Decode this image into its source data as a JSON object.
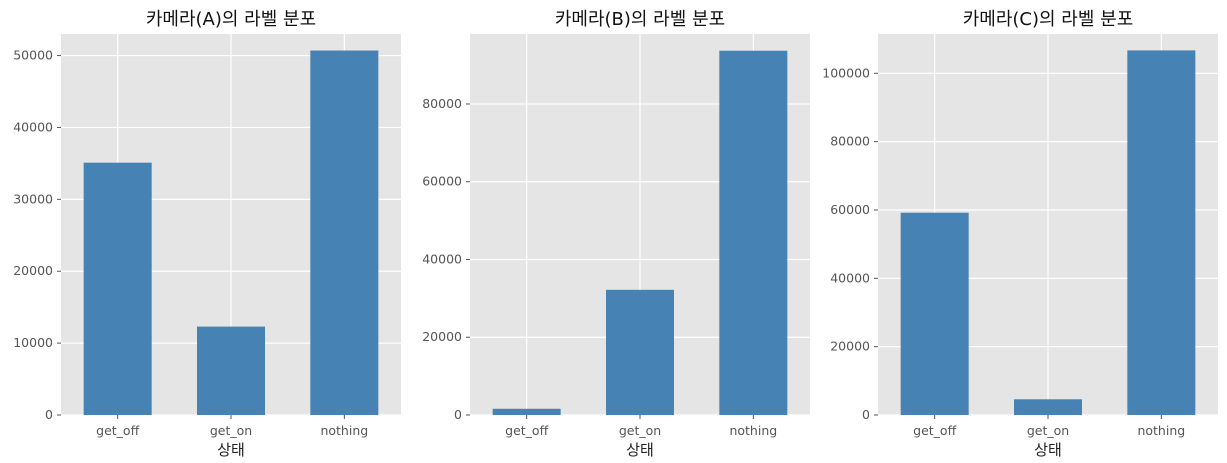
{
  "chart_data": [
    {
      "type": "bar",
      "title": "카메라(A)의 라벨 분포",
      "xlabel": "상태",
      "ylabel": "",
      "categories": [
        "get_off",
        "get_on",
        "nothing"
      ],
      "values": [
        35100,
        12300,
        50700
      ],
      "ylim": [
        0,
        53000
      ],
      "yticks": [
        0,
        10000,
        20000,
        30000,
        40000,
        50000
      ],
      "grid": true,
      "bar_color": "#4682b4",
      "background_color": "#e5e5e5"
    },
    {
      "type": "bar",
      "title": "카메라(B)의 라벨 분포",
      "xlabel": "상태",
      "ylabel": "",
      "categories": [
        "get_off",
        "get_on",
        "nothing"
      ],
      "values": [
        1600,
        32200,
        93700
      ],
      "ylim": [
        0,
        98000
      ],
      "yticks": [
        0,
        20000,
        40000,
        60000,
        80000
      ],
      "grid": true,
      "bar_color": "#4682b4",
      "background_color": "#e5e5e5"
    },
    {
      "type": "bar",
      "title": "카메라(C)의 라벨 분포",
      "xlabel": "상태",
      "ylabel": "",
      "categories": [
        "get_off",
        "get_on",
        "nothing"
      ],
      "values": [
        59200,
        4600,
        106700
      ],
      "ylim": [
        0,
        111500
      ],
      "yticks": [
        0,
        20000,
        40000,
        60000,
        80000,
        100000
      ],
      "grid": true,
      "bar_color": "#4682b4",
      "background_color": "#e5e5e5"
    }
  ]
}
